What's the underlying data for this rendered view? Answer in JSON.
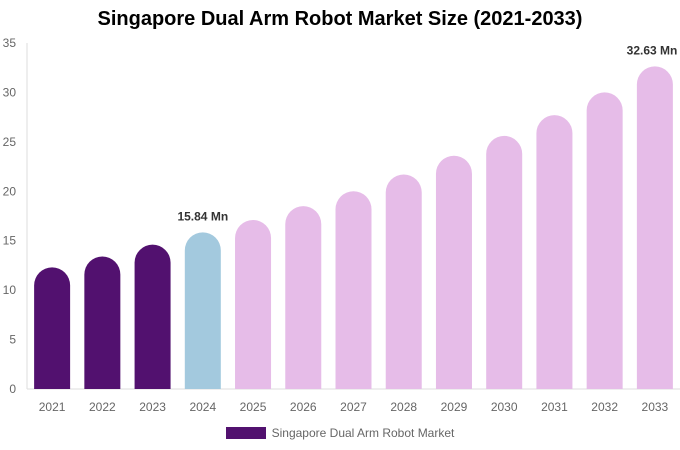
{
  "chart_data": {
    "type": "bar",
    "title": "Singapore Dual Arm Robot Market Size (2021-2033)",
    "categories": [
      "2021",
      "2022",
      "2023",
      "2024",
      "2025",
      "2026",
      "2027",
      "2028",
      "2029",
      "2030",
      "2031",
      "2032",
      "2033"
    ],
    "series": [
      {
        "name": "Singapore Dual Arm Robot Market",
        "values": [
          12.3,
          13.4,
          14.6,
          15.84,
          17.1,
          18.5,
          20.0,
          21.7,
          23.6,
          25.6,
          27.7,
          30.0,
          32.63
        ]
      }
    ],
    "data_labels": {
      "3": "15.84 Mn",
      "12": "32.63 Mn"
    },
    "ylim": [
      0,
      35
    ],
    "yticks": [
      0,
      5,
      10,
      15,
      20,
      25,
      30,
      35
    ],
    "grid": false,
    "legend": "bottom",
    "colors": {
      "historical": "#52116f",
      "base_year": "#a3c9de",
      "forecast": "#e6bce8"
    },
    "color_groups": [
      "historical",
      "historical",
      "historical",
      "base_year",
      "forecast",
      "forecast",
      "forecast",
      "forecast",
      "forecast",
      "forecast",
      "forecast",
      "forecast",
      "forecast"
    ]
  }
}
